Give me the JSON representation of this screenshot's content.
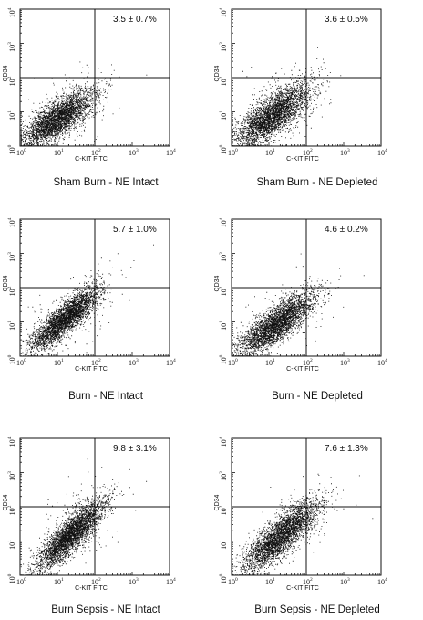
{
  "chart_data": [
    {
      "type": "scatter",
      "panel": "Sham Burn - NE Intact",
      "caption": "Sham Burn - NE Intact",
      "xlabel": "C-KIT FITC",
      "ylabel": "CD34",
      "xscale": "log",
      "yscale": "log",
      "xlim": [
        1,
        10000
      ],
      "ylim": [
        1,
        10000
      ],
      "x_ticks": [
        "10^0",
        "10^1",
        "10^2",
        "10^3",
        "10^4"
      ],
      "y_ticks": [
        "10^0",
        "10^1",
        "10^2",
        "10^3",
        "10^4"
      ],
      "quadrant_gate": {
        "x": 100,
        "y": 100
      },
      "annotation": "3.5 ± 0.7%",
      "cloud": {
        "center_log": [
          1.0,
          0.8
        ],
        "spread_log": [
          0.5,
          0.42
        ],
        "correlation": 0.78,
        "n_events": 3500
      }
    },
    {
      "type": "scatter",
      "panel": "Sham Burn - NE Depleted",
      "caption": "Sham Burn - NE Depleted",
      "xlabel": "C-KIT FITC",
      "ylabel": "CD34",
      "xscale": "log",
      "yscale": "log",
      "xlim": [
        1,
        10000
      ],
      "ylim": [
        1,
        10000
      ],
      "x_ticks": [
        "10^0",
        "10^1",
        "10^2",
        "10^3",
        "10^4"
      ],
      "y_ticks": [
        "10^0",
        "10^1",
        "10^2",
        "10^3",
        "10^4"
      ],
      "quadrant_gate": {
        "x": 100,
        "y": 100
      },
      "annotation": "3.6 ± 0.5%",
      "cloud": {
        "center_log": [
          1.1,
          0.9
        ],
        "spread_log": [
          0.5,
          0.45
        ],
        "correlation": 0.75,
        "n_events": 3500
      }
    },
    {
      "type": "scatter",
      "panel": "Burn - NE Intact",
      "caption": "Burn - NE Intact",
      "xlabel": "C-KIT FITC",
      "ylabel": "CD34",
      "xscale": "log",
      "yscale": "log",
      "xlim": [
        1,
        10000
      ],
      "ylim": [
        1,
        10000
      ],
      "x_ticks": [
        "10^0",
        "10^1",
        "10^2",
        "10^3",
        "10^4"
      ],
      "y_ticks": [
        "10^0",
        "10^1",
        "10^2",
        "10^3",
        "10^4"
      ],
      "quadrant_gate": {
        "x": 100,
        "y": 100
      },
      "annotation": "5.7 ± 1.0%",
      "cloud": {
        "center_log": [
          1.2,
          1.1
        ],
        "spread_log": [
          0.45,
          0.45
        ],
        "correlation": 0.85,
        "n_events": 3500
      }
    },
    {
      "type": "scatter",
      "panel": "Burn - NE Depleted",
      "caption": "Burn - NE Depleted",
      "xlabel": "C-KIT FITC",
      "ylabel": "CD34",
      "xscale": "log",
      "yscale": "log",
      "xlim": [
        1,
        10000
      ],
      "ylim": [
        1,
        10000
      ],
      "x_ticks": [
        "10^0",
        "10^1",
        "10^2",
        "10^3",
        "10^4"
      ],
      "y_ticks": [
        "10^0",
        "10^1",
        "10^2",
        "10^3",
        "10^4"
      ],
      "quadrant_gate": {
        "x": 100,
        "y": 100
      },
      "annotation": "4.6 ± 0.2%",
      "cloud": {
        "center_log": [
          1.2,
          0.95
        ],
        "spread_log": [
          0.5,
          0.45
        ],
        "correlation": 0.82,
        "n_events": 3500
      }
    },
    {
      "type": "scatter",
      "panel": "Burn Sepsis - NE Intact",
      "caption": "Burn Sepsis - NE Intact",
      "xlabel": "C-KIT FITC",
      "ylabel": "CD34",
      "xscale": "log",
      "yscale": "log",
      "xlim": [
        1,
        10000
      ],
      "ylim": [
        1,
        10000
      ],
      "x_ticks": [
        "10^0",
        "10^1",
        "10^2",
        "10^3",
        "10^4"
      ],
      "y_ticks": [
        "10^0",
        "10^1",
        "10^2",
        "10^3",
        "10^4"
      ],
      "quadrant_gate": {
        "x": 100,
        "y": 100
      },
      "annotation": "9.8 ± 3.1%",
      "cloud": {
        "center_log": [
          1.35,
          1.2
        ],
        "spread_log": [
          0.45,
          0.5
        ],
        "correlation": 0.85,
        "n_events": 3500
      }
    },
    {
      "type": "scatter",
      "panel": "Burn Sepsis - NE Depleted",
      "caption": "Burn Sepsis - NE Depleted",
      "xlabel": "C-KIT FITC",
      "ylabel": "CD34",
      "xscale": "log",
      "yscale": "log",
      "xlim": [
        1,
        10000
      ],
      "ylim": [
        1,
        10000
      ],
      "x_ticks": [
        "10^0",
        "10^1",
        "10^2",
        "10^3",
        "10^4"
      ],
      "y_ticks": [
        "10^0",
        "10^1",
        "10^2",
        "10^3",
        "10^4"
      ],
      "quadrant_gate": {
        "x": 100,
        "y": 100
      },
      "annotation": "7.6 ± 1.3%",
      "cloud": {
        "center_log": [
          1.3,
          1.15
        ],
        "spread_log": [
          0.5,
          0.5
        ],
        "correlation": 0.83,
        "n_events": 3500
      }
    }
  ]
}
